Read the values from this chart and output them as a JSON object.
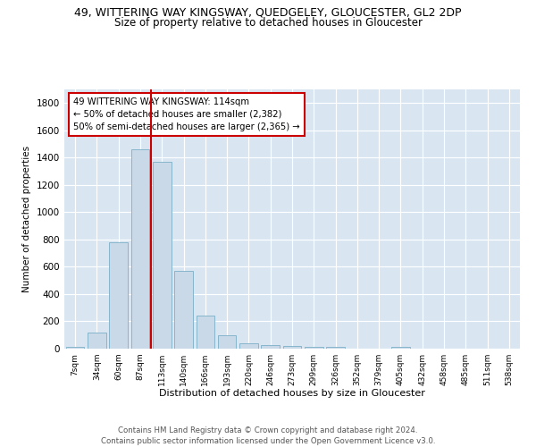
{
  "title": "49, WITTERING WAY KINGSWAY, QUEDGELEY, GLOUCESTER, GL2 2DP",
  "subtitle": "Size of property relative to detached houses in Gloucester",
  "xlabel": "Distribution of detached houses by size in Gloucester",
  "ylabel": "Number of detached properties",
  "bar_labels": [
    "7sqm",
    "34sqm",
    "60sqm",
    "87sqm",
    "113sqm",
    "140sqm",
    "166sqm",
    "193sqm",
    "220sqm",
    "246sqm",
    "273sqm",
    "299sqm",
    "326sqm",
    "352sqm",
    "379sqm",
    "405sqm",
    "432sqm",
    "458sqm",
    "485sqm",
    "511sqm",
    "538sqm"
  ],
  "bar_values": [
    10,
    120,
    780,
    1460,
    1370,
    570,
    245,
    100,
    40,
    25,
    20,
    10,
    15,
    0,
    0,
    15,
    0,
    0,
    0,
    0,
    0
  ],
  "bar_color": "#c9d9e8",
  "bar_edge_color": "#7aafc8",
  "vline_color": "#cc0000",
  "ylim": [
    0,
    1900
  ],
  "yticks": [
    0,
    200,
    400,
    600,
    800,
    1000,
    1200,
    1400,
    1600,
    1800
  ],
  "annotation_text": "49 WITTERING WAY KINGSWAY: 114sqm\n← 50% of detached houses are smaller (2,382)\n50% of semi-detached houses are larger (2,365) →",
  "annotation_box_color": "#ffffff",
  "annotation_box_edge_color": "#cc0000",
  "footer_line1": "Contains HM Land Registry data © Crown copyright and database right 2024.",
  "footer_line2": "Contains public sector information licensed under the Open Government Licence v3.0.",
  "plot_bg_color": "#d9e6f2",
  "title_fontsize": 9,
  "subtitle_fontsize": 8.5,
  "vline_x_index": 3.5
}
